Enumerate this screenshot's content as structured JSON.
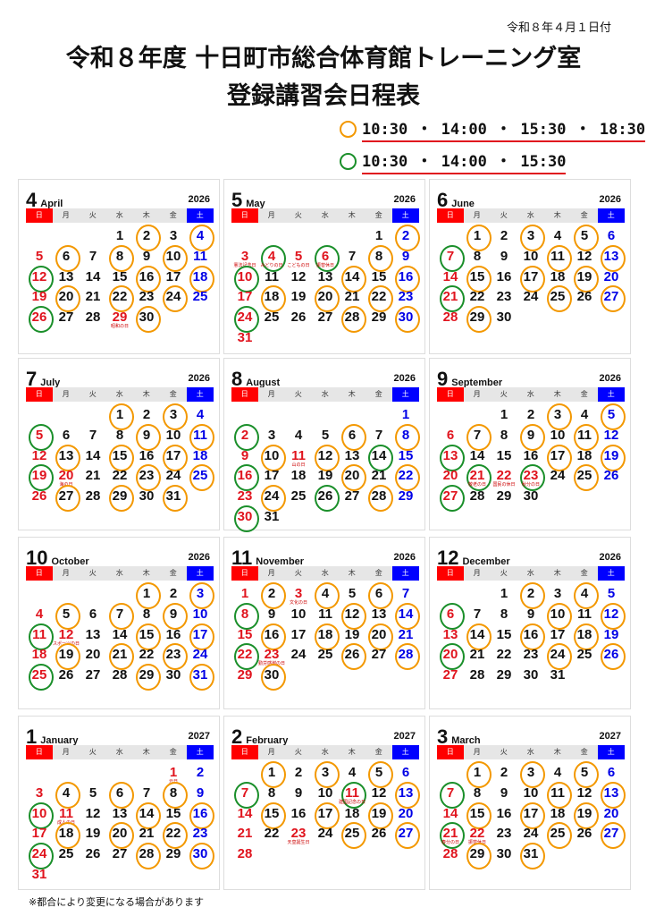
{
  "issue_date": "令和８年４月１日付",
  "title_line1": "令和８年度 十日町市総合体育館トレーニング室",
  "title_line2": "登録講習会日程表",
  "legend": [
    {
      "marker": "orange-circle",
      "color": "#f39800",
      "times": "10:30 ・ 14:00 ・ 15:30 ・ 18:30"
    },
    {
      "marker": "green-circle",
      "color": "#1a8f2a",
      "times": "10:30 ・ 14:00 ・ 15:30"
    }
  ],
  "weekdays": [
    "日",
    "月",
    "火",
    "水",
    "木",
    "金",
    "土"
  ],
  "months": [
    {
      "num": "4",
      "en": "April",
      "year": "2026",
      "start": 3,
      "days": 30,
      "orange": [
        2,
        4,
        6,
        8,
        10,
        16,
        18,
        20,
        22,
        24,
        30
      ],
      "green": [
        12,
        26
      ],
      "holidays": {
        "29": "昭和の日"
      }
    },
    {
      "num": "5",
      "en": "May",
      "year": "2026",
      "start": 5,
      "days": 31,
      "orange": [
        2,
        8,
        14,
        16,
        18,
        20,
        22,
        28,
        30
      ],
      "green": [
        4,
        6,
        10,
        24
      ],
      "holidays": {
        "3": "憲法記念日",
        "4": "みどりの日",
        "5": "こどもの日",
        "6": "振替休日"
      }
    },
    {
      "num": "6",
      "en": "June",
      "year": "2026",
      "start": 1,
      "days": 30,
      "orange": [
        1,
        3,
        5,
        11,
        13,
        15,
        17,
        19,
        25,
        27,
        29
      ],
      "green": [
        7,
        21
      ],
      "holidays": {}
    },
    {
      "num": "7",
      "en": "July",
      "year": "2026",
      "start": 3,
      "days": 31,
      "orange": [
        1,
        3,
        9,
        11,
        13,
        15,
        17,
        23,
        25,
        27,
        29,
        31
      ],
      "green": [
        5,
        19
      ],
      "holidays": {
        "20": "海の日"
      }
    },
    {
      "num": "8",
      "en": "August",
      "year": "2026",
      "start": 6,
      "days": 31,
      "orange": [
        6,
        8,
        10,
        12,
        20,
        22,
        24,
        28
      ],
      "green": [
        2,
        14,
        16,
        26,
        30
      ],
      "holidays": {
        "11": "山の日"
      }
    },
    {
      "num": "9",
      "en": "September",
      "year": "2026",
      "start": 2,
      "days": 30,
      "orange": [
        3,
        5,
        7,
        9,
        11,
        17,
        19,
        25
      ],
      "green": [
        13,
        21,
        23,
        27
      ],
      "holidays": {
        "21": "敬老の日",
        "22": "国民の休日",
        "23": "秋分の日"
      }
    },
    {
      "num": "10",
      "en": "October",
      "year": "2026",
      "start": 4,
      "days": 31,
      "orange": [
        1,
        3,
        5,
        7,
        9,
        15,
        17,
        19,
        21,
        23,
        29,
        31
      ],
      "green": [
        11,
        25
      ],
      "holidays": {
        "12": "スポーツの日"
      }
    },
    {
      "num": "11",
      "en": "November",
      "year": "2026",
      "start": 0,
      "days": 30,
      "orange": [
        2,
        4,
        6,
        12,
        14,
        16,
        18,
        20,
        26,
        28,
        30
      ],
      "green": [
        8,
        22
      ],
      "holidays": {
        "3": "文化の日",
        "23": "勤労感謝の日"
      }
    },
    {
      "num": "12",
      "en": "December",
      "year": "2026",
      "start": 2,
      "days": 31,
      "orange": [
        2,
        4,
        10,
        12,
        14,
        16,
        18,
        24,
        26
      ],
      "green": [
        6,
        20
      ],
      "holidays": {}
    },
    {
      "num": "1",
      "en": "January",
      "year": "2027",
      "start": 5,
      "days": 31,
      "orange": [
        4,
        6,
        8,
        14,
        16,
        18,
        20,
        22,
        28,
        30
      ],
      "green": [
        10,
        24
      ],
      "holidays": {
        "1": "元日",
        "11": "成人の日"
      }
    },
    {
      "num": "2",
      "en": "February",
      "year": "2027",
      "start": 1,
      "days": 28,
      "orange": [
        1,
        3,
        5,
        13,
        15,
        17,
        19,
        25,
        27
      ],
      "green": [
        7,
        11
      ],
      "holidays": {
        "11": "建国記念の日",
        "23": "天皇誕生日"
      }
    },
    {
      "num": "3",
      "en": "March",
      "year": "2027",
      "start": 1,
      "days": 31,
      "orange": [
        1,
        3,
        5,
        11,
        13,
        15,
        17,
        19,
        25,
        27,
        29,
        31
      ],
      "green": [
        7,
        21
      ],
      "holidays": {
        "21": "春分の日",
        "22": "振替休日"
      }
    }
  ],
  "note": "※都合により変更になる場合があります"
}
